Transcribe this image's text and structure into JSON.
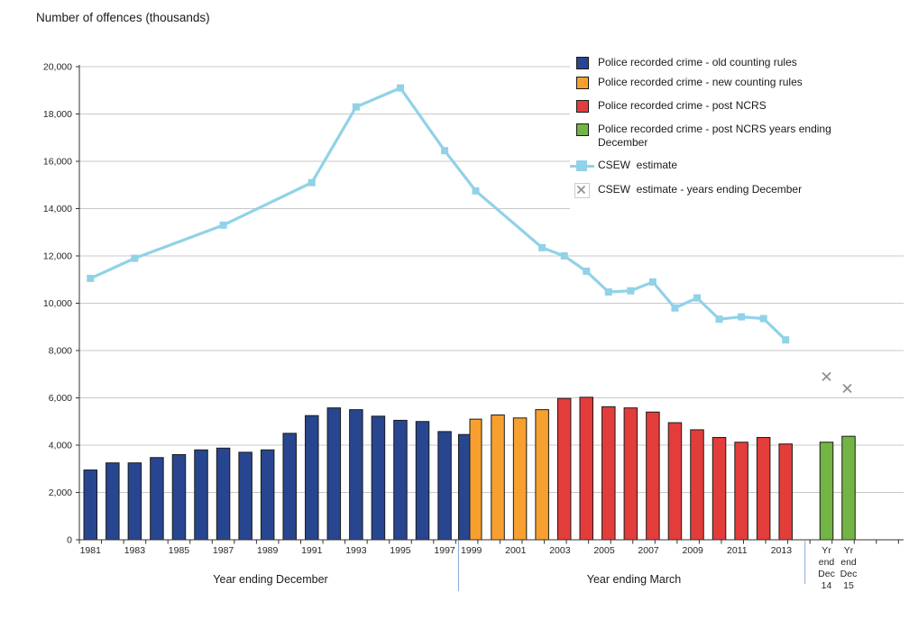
{
  "chart_data": {
    "type": "bar+line",
    "title": "Number of offences (thousands)",
    "y_axis": {
      "min": 0,
      "max": 20000,
      "step": 2000,
      "tick_format": "comma"
    },
    "x_axis": {
      "tick_years": [
        1981,
        1983,
        1985,
        1987,
        1989,
        1991,
        1993,
        1995,
        1997,
        1999,
        2001,
        2003,
        2005,
        2007,
        2009,
        2011,
        2013
      ],
      "left_section_label": "Year ending December",
      "right_section_label": "Year ending March"
    },
    "bar_series": [
      {
        "name": "Police recorded crime - old counting rules",
        "color": "#28468F",
        "points": [
          [
            1981,
            2950
          ],
          [
            1982,
            3250
          ],
          [
            1983,
            3250
          ],
          [
            1984,
            3475
          ],
          [
            1985,
            3600
          ],
          [
            1986,
            3800
          ],
          [
            1987,
            3875
          ],
          [
            1988,
            3700
          ],
          [
            1989,
            3800
          ],
          [
            1990,
            4500
          ],
          [
            1991,
            5250
          ],
          [
            1992,
            5575
          ],
          [
            1993,
            5500
          ],
          [
            1994,
            5225
          ],
          [
            1995,
            5050
          ],
          [
            1996,
            5000
          ],
          [
            1997,
            4575
          ],
          [
            1998,
            4450
          ]
        ]
      },
      {
        "name": "Police recorded crime - new counting rules",
        "color": "#F7A02F",
        "points": [
          [
            1999,
            5100
          ],
          [
            2000,
            5275
          ],
          [
            2001,
            5150
          ],
          [
            2002,
            5500
          ]
        ]
      },
      {
        "name": "Police recorded crime - post NCRS",
        "color": "#E23D3B",
        "points": [
          [
            2003,
            5975
          ],
          [
            2004,
            6025
          ],
          [
            2005,
            5625
          ],
          [
            2006,
            5575
          ],
          [
            2007,
            5400
          ],
          [
            2008,
            4950
          ],
          [
            2009,
            4650
          ],
          [
            2010,
            4325
          ],
          [
            2011,
            4125
          ],
          [
            2012,
            4325
          ],
          [
            2013,
            4050
          ]
        ]
      },
      {
        "name": "Police recorded crime - post NCRS years ending December",
        "color": "#73B444",
        "points": [
          {
            "label": "Yr end Dec 14",
            "label_lines": [
              "Yr",
              "end",
              "Dec",
              "14"
            ],
            "value": 4125
          },
          {
            "label": "Yr end Dec 15",
            "label_lines": [
              "Yr",
              "end",
              "Dec",
              "15"
            ],
            "value": 4375
          }
        ]
      }
    ],
    "line_series": {
      "name": "CSEW estimate",
      "color": "#90D2E8",
      "points": [
        [
          1981,
          11050
        ],
        [
          1983,
          11900
        ],
        [
          1987,
          13300
        ],
        [
          1991,
          15100
        ],
        [
          1993,
          18300
        ],
        [
          1995,
          19100
        ],
        [
          1997,
          16450
        ],
        [
          1999,
          14750
        ],
        [
          2002,
          12350
        ],
        [
          2003,
          12000
        ],
        [
          2004,
          11350
        ],
        [
          2005,
          10475
        ],
        [
          2006,
          10525
        ],
        [
          2007,
          10900
        ],
        [
          2008,
          9800
        ],
        [
          2009,
          10225
        ],
        [
          2010,
          9325
        ],
        [
          2011,
          9425
        ],
        [
          2012,
          9350
        ],
        [
          2013,
          8450
        ]
      ]
    },
    "x_marker_series": {
      "name": "CSEW estimate - years ending December",
      "color": "#8F8F8F",
      "points": [
        {
          "label": "Yr end Dec 14",
          "value": 6900
        },
        {
          "label": "Yr end Dec 15",
          "value": 6400
        }
      ]
    }
  },
  "legend": [
    {
      "label": "Police recorded crime - old counting rules",
      "color": "#28468F",
      "type": "square"
    },
    {
      "label": "Police recorded crime - new counting rules",
      "color": "#F7A02F",
      "type": "square"
    },
    {
      "label": "Police recorded crime - post NCRS",
      "color": "#E23D3B",
      "type": "square"
    },
    {
      "label": "Police recorded crime - post NCRS years ending\nDecember",
      "color": "#73B444",
      "type": "square"
    },
    {
      "label": "CSEW  estimate",
      "color": "#90D2E8",
      "type": "line-square"
    },
    {
      "label": "CSEW  estimate - years ending December",
      "color": "#8F8F8F",
      "type": "x"
    }
  ],
  "style_colors": {
    "gridline": "#C8C8C8",
    "axis": "#333333",
    "bar_border": "#1A1A1A",
    "separator_line": "#88ABD8"
  }
}
